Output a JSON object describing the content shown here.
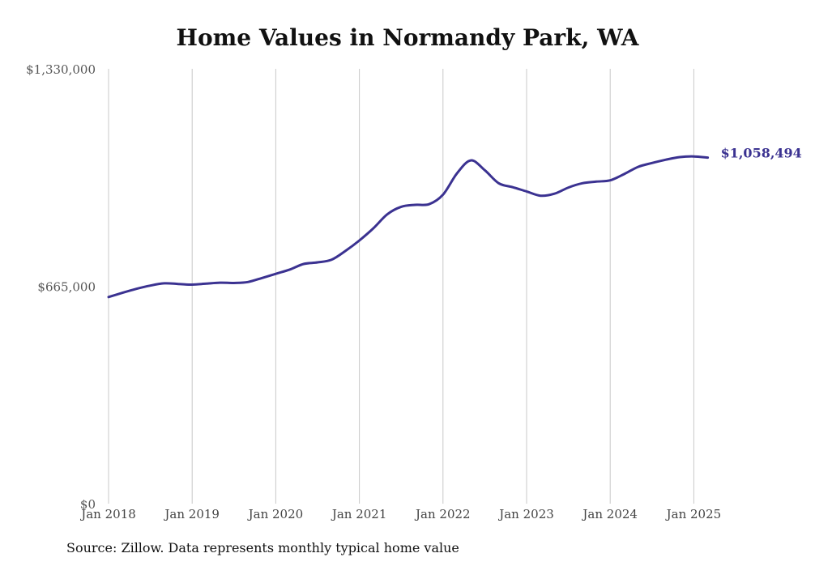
{
  "title": "Home Values in Normandy Park, WA",
  "source": "Source: Zillow. Data represents monthly typical home value",
  "colors": {
    "line": "#3b3291",
    "grid": "#c8c8c8"
  },
  "chart_data": {
    "type": "line",
    "title": "Home Values in Normandy Park, WA",
    "ylim": [
      0,
      1330000
    ],
    "y_ticks": [
      0,
      665000,
      1330000
    ],
    "y_tick_labels": [
      "$0",
      "$665,000",
      "$1,330,000"
    ],
    "x_ticks": [
      "2018-01",
      "2019-01",
      "2020-01",
      "2021-01",
      "2022-01",
      "2023-01",
      "2024-01",
      "2025-01"
    ],
    "x_tick_labels": [
      "Jan 2018",
      "Jan 2019",
      "Jan 2020",
      "Jan 2021",
      "Jan 2022",
      "Jan 2023",
      "Jan 2024",
      "Jan 2025"
    ],
    "grid": "vertical",
    "end_label": "$1,058,494",
    "series": [
      {
        "points": [
          [
            "2018-01",
            632000
          ],
          [
            "2018-03",
            645000
          ],
          [
            "2018-05",
            657000
          ],
          [
            "2018-07",
            667000
          ],
          [
            "2018-09",
            674000
          ],
          [
            "2018-11",
            672000
          ],
          [
            "2019-01",
            670000
          ],
          [
            "2019-03",
            673000
          ],
          [
            "2019-05",
            676000
          ],
          [
            "2019-07",
            675000
          ],
          [
            "2019-09",
            678000
          ],
          [
            "2019-11",
            690000
          ],
          [
            "2020-01",
            703000
          ],
          [
            "2020-03",
            716000
          ],
          [
            "2020-05",
            733000
          ],
          [
            "2020-07",
            738000
          ],
          [
            "2020-09",
            746000
          ],
          [
            "2020-11",
            773000
          ],
          [
            "2021-01",
            805000
          ],
          [
            "2021-03",
            842000
          ],
          [
            "2021-05",
            885000
          ],
          [
            "2021-07",
            908000
          ],
          [
            "2021-09",
            914000
          ],
          [
            "2021-11",
            916000
          ],
          [
            "2022-01",
            945000
          ],
          [
            "2022-03",
            1010000
          ],
          [
            "2022-05",
            1050000
          ],
          [
            "2022-07",
            1020000
          ],
          [
            "2022-09",
            980000
          ],
          [
            "2022-11",
            968000
          ],
          [
            "2023-01",
            955000
          ],
          [
            "2023-03",
            942000
          ],
          [
            "2023-05",
            948000
          ],
          [
            "2023-07",
            967000
          ],
          [
            "2023-09",
            980000
          ],
          [
            "2023-11",
            985000
          ],
          [
            "2024-01",
            989000
          ],
          [
            "2024-03",
            1008000
          ],
          [
            "2024-05",
            1030000
          ],
          [
            "2024-07",
            1042000
          ],
          [
            "2024-09",
            1052000
          ],
          [
            "2024-11",
            1060000
          ],
          [
            "2025-01",
            1062000
          ],
          [
            "2025-03",
            1058494
          ]
        ]
      }
    ]
  }
}
